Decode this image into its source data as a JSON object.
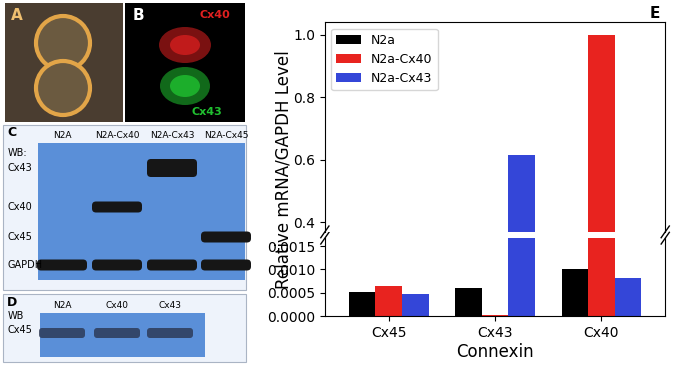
{
  "panels": {
    "A": {
      "label": "A"
    },
    "B": {
      "label": "B",
      "stains": [
        {
          "name": "Cx40",
          "color": "#e02020"
        },
        {
          "name": "Cx43",
          "color": "#20c030"
        }
      ]
    },
    "C": {
      "label": "C",
      "row_header": "WB:",
      "columns": [
        "N2A",
        "N2A-Cx40",
        "N2A-Cx43",
        "N2A-Cx45"
      ],
      "rows": [
        {
          "label": "Cx43",
          "bands": [
            "N2A-Cx43"
          ]
        },
        {
          "label": "Cx40",
          "bands": [
            "N2A-Cx40"
          ]
        },
        {
          "label": "Cx45",
          "bands": [
            "N2A-Cx45"
          ]
        },
        {
          "label": "GAPDH",
          "bands": [
            "N2A",
            "N2A-Cx40",
            "N2A-Cx43",
            "N2A-Cx45"
          ]
        }
      ]
    },
    "D": {
      "label": "D",
      "row_header": "WB",
      "columns": [
        "N2A",
        "Cx40",
        "Cx43"
      ],
      "rows": [
        {
          "label": "Cx45",
          "bands": [
            "N2A",
            "Cx40",
            "Cx43"
          ]
        }
      ]
    }
  },
  "chart_data": {
    "type": "bar",
    "panel_label": "E",
    "categories": [
      "Cx45",
      "Cx43",
      "Cx40"
    ],
    "series": [
      {
        "name": "N2a",
        "color": "#000000",
        "values": [
          0.00052,
          0.0006,
          0.00102
        ]
      },
      {
        "name": "N2a-Cx40",
        "color": "#e8231f",
        "values": [
          0.00065,
          3e-05,
          1.0
        ]
      },
      {
        "name": "N2a-Cx43",
        "color": "#3446d8",
        "values": [
          0.00048,
          0.615,
          0.00082
        ]
      }
    ],
    "x_label": "Connexin",
    "y_label": "Relative mRNA/GAPDH Level",
    "ylim": [
      [
        0,
        0.00167
      ],
      [
        0.37,
        1.04
      ]
    ],
    "yticks": [
      [
        {
          "value": 0,
          "label": "0.0000"
        },
        {
          "value": 0.0005,
          "label": "0.0005"
        },
        {
          "value": 0.001,
          "label": "0.0010"
        },
        {
          "value": 0.0015,
          "label": "0.0015"
        }
      ],
      [
        {
          "value": 0.4,
          "label": "0.4"
        },
        {
          "value": 0.6,
          "label": "0.6"
        },
        {
          "value": 0.8,
          "label": "0.8"
        },
        {
          "value": 1.0,
          "label": "1.0"
        }
      ]
    ],
    "legend": "upper left"
  }
}
